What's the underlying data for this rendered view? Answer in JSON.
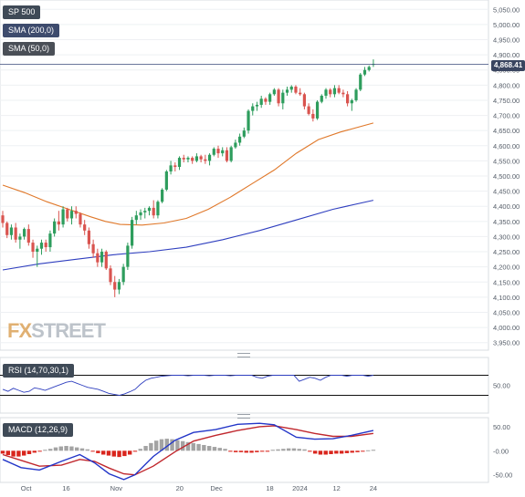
{
  "chart_data": [
    {
      "type": "candlestick",
      "title": "SP 500",
      "series": [
        {
          "name": "SP 500"
        },
        {
          "name": "SMA (200,0)",
          "color": "#2f3fbf"
        },
        {
          "name": "SMA (50,0)",
          "color": "#e0782a"
        }
      ],
      "last_price": "4,868.41",
      "ylim": [
        3925,
        5075
      ],
      "y_ticks": [
        {
          "v": 5050,
          "label": "5,050.00"
        },
        {
          "v": 5000,
          "label": "5,000.00"
        },
        {
          "v": 4950,
          "label": "4,950.00"
        },
        {
          "v": 4900,
          "label": "4,900.00"
        },
        {
          "v": 4850,
          "label": "4,850.00"
        },
        {
          "v": 4800,
          "label": "4,800.00"
        },
        {
          "v": 4750,
          "label": "4,750.00"
        },
        {
          "v": 4700,
          "label": "4,700.00"
        },
        {
          "v": 4650,
          "label": "4,650.00"
        },
        {
          "v": 4600,
          "label": "4,600.00"
        },
        {
          "v": 4550,
          "label": "4,550.00"
        },
        {
          "v": 4500,
          "label": "4,500.00"
        },
        {
          "v": 4450,
          "label": "4,450.00"
        },
        {
          "v": 4400,
          "label": "4,400.00"
        },
        {
          "v": 4350,
          "label": "4,350.00"
        },
        {
          "v": 4300,
          "label": "4,300.00"
        },
        {
          "v": 4250,
          "label": "4,250.00"
        },
        {
          "v": 4200,
          "label": "4,200.00"
        },
        {
          "v": 4150,
          "label": "4,150.00"
        },
        {
          "v": 4100,
          "label": "4,100.00"
        },
        {
          "v": 4050,
          "label": "4,050.00"
        },
        {
          "v": 4000,
          "label": "4,000.00"
        },
        {
          "v": 3950,
          "label": "3,950.00"
        }
      ],
      "candles": [
        [
          4370,
          4385,
          4330,
          4345
        ],
        [
          4345,
          4350,
          4295,
          4305
        ],
        [
          4305,
          4340,
          4290,
          4330
        ],
        [
          4330,
          4345,
          4280,
          4290
        ],
        [
          4290,
          4310,
          4260,
          4300
        ],
        [
          4300,
          4330,
          4290,
          4325
        ],
        [
          4325,
          4340,
          4270,
          4280
        ],
        [
          4280,
          4290,
          4230,
          4250
        ],
        [
          4250,
          4270,
          4200,
          4260
        ],
        [
          4260,
          4290,
          4240,
          4280
        ],
        [
          4280,
          4290,
          4250,
          4265
        ],
        [
          4265,
          4320,
          4250,
          4310
        ],
        [
          4310,
          4360,
          4300,
          4350
        ],
        [
          4350,
          4385,
          4320,
          4340
        ],
        [
          4340,
          4400,
          4330,
          4390
        ],
        [
          4390,
          4395,
          4350,
          4360
        ],
        [
          4360,
          4400,
          4340,
          4385
        ],
        [
          4385,
          4400,
          4360,
          4375
        ],
        [
          4375,
          4380,
          4330,
          4340
        ],
        [
          4340,
          4355,
          4305,
          4320
        ],
        [
          4320,
          4330,
          4260,
          4275
        ],
        [
          4275,
          4290,
          4230,
          4245
        ],
        [
          4245,
          4260,
          4200,
          4215
        ],
        [
          4215,
          4260,
          4200,
          4250
        ],
        [
          4250,
          4255,
          4190,
          4195
        ],
        [
          4195,
          4205,
          4140,
          4150
        ],
        [
          4150,
          4170,
          4100,
          4125
        ],
        [
          4125,
          4160,
          4110,
          4150
        ],
        [
          4150,
          4210,
          4140,
          4200
        ],
        [
          4200,
          4280,
          4190,
          4270
        ],
        [
          4270,
          4365,
          4260,
          4355
        ],
        [
          4355,
          4385,
          4340,
          4370
        ],
        [
          4370,
          4390,
          4355,
          4380
        ],
        [
          4380,
          4395,
          4360,
          4385
        ],
        [
          4385,
          4400,
          4370,
          4395
        ],
        [
          4395,
          4420,
          4360,
          4370
        ],
        [
          4370,
          4420,
          4360,
          4415
        ],
        [
          4415,
          4460,
          4410,
          4455
        ],
        [
          4455,
          4520,
          4450,
          4515
        ],
        [
          4515,
          4550,
          4505,
          4535
        ],
        [
          4535,
          4545,
          4515,
          4530
        ],
        [
          4530,
          4565,
          4520,
          4560
        ],
        [
          4560,
          4570,
          4545,
          4555
        ],
        [
          4555,
          4565,
          4545,
          4560
        ],
        [
          4560,
          4565,
          4540,
          4550
        ],
        [
          4550,
          4575,
          4545,
          4565
        ],
        [
          4565,
          4570,
          4545,
          4555
        ],
        [
          4555,
          4570,
          4540,
          4550
        ],
        [
          4550,
          4575,
          4535,
          4570
        ],
        [
          4570,
          4595,
          4565,
          4590
        ],
        [
          4590,
          4600,
          4560,
          4575
        ],
        [
          4575,
          4595,
          4565,
          4585
        ],
        [
          4585,
          4595,
          4545,
          4550
        ],
        [
          4550,
          4600,
          4545,
          4595
        ],
        [
          4595,
          4620,
          4590,
          4610
        ],
        [
          4610,
          4640,
          4600,
          4630
        ],
        [
          4630,
          4660,
          4625,
          4650
        ],
        [
          4650,
          4720,
          4640,
          4715
        ],
        [
          4715,
          4740,
          4700,
          4730
        ],
        [
          4730,
          4745,
          4715,
          4735
        ],
        [
          4735,
          4765,
          4725,
          4755
        ],
        [
          4755,
          4760,
          4735,
          4745
        ],
        [
          4745,
          4775,
          4735,
          4770
        ],
        [
          4770,
          4790,
          4765,
          4785
        ],
        [
          4785,
          4790,
          4730,
          4740
        ],
        [
          4740,
          4785,
          4720,
          4775
        ],
        [
          4775,
          4795,
          4765,
          4785
        ],
        [
          4785,
          4800,
          4775,
          4795
        ],
        [
          4795,
          4800,
          4770,
          4775
        ],
        [
          4775,
          4790,
          4765,
          4770
        ],
        [
          4770,
          4775,
          4720,
          4730
        ],
        [
          4730,
          4740,
          4700,
          4705
        ],
        [
          4705,
          4720,
          4680,
          4690
        ],
        [
          4690,
          4750,
          4685,
          4745
        ],
        [
          4745,
          4770,
          4740,
          4765
        ],
        [
          4765,
          4790,
          4755,
          4785
        ],
        [
          4785,
          4790,
          4760,
          4770
        ],
        [
          4770,
          4800,
          4760,
          4790
        ],
        [
          4790,
          4800,
          4770,
          4775
        ],
        [
          4775,
          4785,
          4760,
          4770
        ],
        [
          4770,
          4780,
          4730,
          4740
        ],
        [
          4740,
          4755,
          4715,
          4750
        ],
        [
          4750,
          4790,
          4745,
          4785
        ],
        [
          4785,
          4840,
          4780,
          4835
        ],
        [
          4835,
          4860,
          4830,
          4850
        ],
        [
          4850,
          4865,
          4845,
          4860
        ],
        [
          4868,
          4885,
          4860,
          4870
        ]
      ],
      "sma200": [
        [
          0,
          4190
        ],
        [
          10,
          4210
        ],
        [
          20,
          4225
        ],
        [
          30,
          4240
        ],
        [
          40,
          4250
        ],
        [
          50,
          4265
        ],
        [
          60,
          4290
        ],
        [
          70,
          4320
        ],
        [
          80,
          4355
        ],
        [
          90,
          4390
        ],
        [
          101,
          4420
        ]
      ],
      "sma50": [
        [
          0,
          4470
        ],
        [
          6,
          4445
        ],
        [
          12,
          4415
        ],
        [
          18,
          4390
        ],
        [
          24,
          4365
        ],
        [
          28,
          4350
        ],
        [
          32,
          4340
        ],
        [
          38,
          4338
        ],
        [
          44,
          4345
        ],
        [
          50,
          4360
        ],
        [
          56,
          4390
        ],
        [
          62,
          4430
        ],
        [
          68,
          4475
        ],
        [
          74,
          4520
        ],
        [
          80,
          4575
        ],
        [
          86,
          4620
        ],
        [
          92,
          4645
        ],
        [
          101,
          4675
        ]
      ],
      "x_labels": [
        {
          "i": 7,
          "label": "Oct"
        },
        {
          "i": 19,
          "label": "16"
        },
        {
          "i": 34,
          "label": "Nov"
        },
        {
          "i": 53,
          "label": "20"
        },
        {
          "i": 64,
          "label": "Dec"
        },
        {
          "i": 80,
          "label": "18"
        },
        {
          "i": 89,
          "label": "2024"
        },
        {
          "i": 100,
          "label": "12"
        },
        {
          "i": 111,
          "label": "24"
        }
      ]
    },
    {
      "type": "line",
      "title": "RSI (14,70,30,1)",
      "levels": [
        70,
        30
      ],
      "y_ticks": [
        {
          "v": 50,
          "label": "50.00"
        }
      ],
      "ylim": [
        0,
        100
      ],
      "values": [
        42,
        38,
        44,
        40,
        36,
        38,
        45,
        43,
        40,
        44,
        48,
        52,
        56,
        58,
        54,
        50,
        46,
        44,
        42,
        38,
        34,
        32,
        30,
        33,
        37,
        42,
        52,
        60,
        64,
        66,
        68,
        69,
        70,
        70,
        70,
        69,
        70,
        70,
        70,
        69,
        70,
        70,
        70,
        69,
        70,
        70,
        70,
        70,
        66,
        64,
        68,
        70,
        70,
        70,
        70,
        70,
        58,
        62,
        66,
        64,
        60,
        66,
        70,
        70,
        70,
        68,
        70,
        70,
        70,
        68,
        70
      ]
    },
    {
      "type": "bar",
      "title": "MACD (12,26,9)",
      "y_ticks": [
        {
          "v": 50,
          "label": "50.00"
        },
        {
          "v": 0,
          "label": "-0.00"
        },
        {
          "v": -50,
          "label": "-50.00"
        }
      ],
      "ylim": [
        -62,
        65
      ],
      "histogram": [
        -6,
        -9,
        -12,
        -12,
        -10,
        -7,
        -4,
        -1,
        2,
        4,
        7,
        9,
        10,
        9,
        7,
        5,
        3,
        -1,
        -5,
        -8,
        -10,
        -12,
        -13,
        -11,
        -8,
        -2,
        4,
        10,
        16,
        21,
        24,
        25,
        24,
        22,
        20,
        18,
        16,
        14,
        12,
        10,
        8,
        6,
        4,
        -2,
        -3,
        -3,
        -4,
        -4,
        -3,
        -2,
        -2,
        2,
        3,
        4,
        5,
        5,
        4,
        3,
        -2,
        -6,
        -8,
        -8,
        -7,
        -6,
        -6,
        -5,
        -4,
        -3,
        -1,
        1,
        2
      ],
      "macd": [
        [
          0,
          -18
        ],
        [
          5,
          -35
        ],
        [
          10,
          -40
        ],
        [
          16,
          -22
        ],
        [
          21,
          -8
        ],
        [
          25,
          -25
        ],
        [
          29,
          -48
        ],
        [
          33,
          -60
        ],
        [
          36,
          -50
        ],
        [
          41,
          -12
        ],
        [
          47,
          22
        ],
        [
          52,
          38
        ],
        [
          58,
          44
        ],
        [
          64,
          55
        ],
        [
          70,
          57
        ],
        [
          74,
          54
        ],
        [
          80,
          28
        ],
        [
          85,
          24
        ],
        [
          90,
          25
        ],
        [
          95,
          32
        ],
        [
          101,
          42
        ]
      ],
      "signal": [
        [
          0,
          -8
        ],
        [
          5,
          -20
        ],
        [
          10,
          -32
        ],
        [
          16,
          -30
        ],
        [
          21,
          -18
        ],
        [
          25,
          -22
        ],
        [
          29,
          -36
        ],
        [
          33,
          -48
        ],
        [
          36,
          -50
        ],
        [
          41,
          -32
        ],
        [
          47,
          -2
        ],
        [
          52,
          20
        ],
        [
          58,
          32
        ],
        [
          64,
          42
        ],
        [
          70,
          50
        ],
        [
          74,
          52
        ],
        [
          80,
          44
        ],
        [
          85,
          36
        ],
        [
          90,
          30
        ],
        [
          95,
          30
        ],
        [
          101,
          36
        ]
      ]
    }
  ],
  "watermark": {
    "part1": "FX",
    "part2": "STREET"
  }
}
